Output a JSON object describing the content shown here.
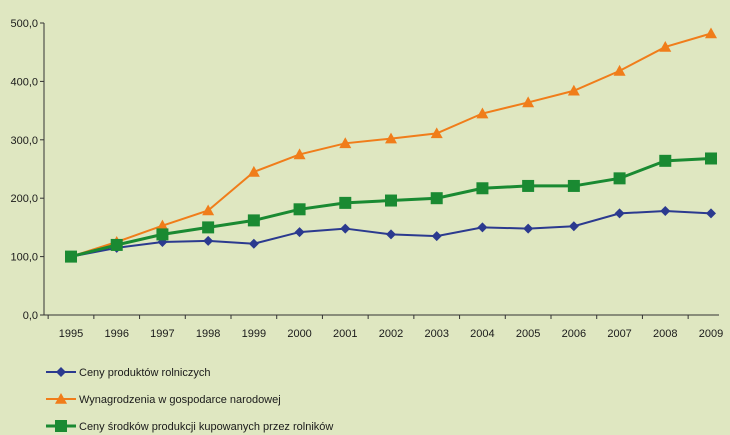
{
  "chart_data": {
    "type": "line",
    "title": "",
    "xlabel": "",
    "ylabel": "",
    "ylim": [
      0,
      500
    ],
    "y_ticks": [
      "0,0",
      "100,0",
      "200,0",
      "300,0",
      "400,0",
      "500,0"
    ],
    "grid": false,
    "legend_placement": "bottom-left",
    "x": [
      "1995",
      "1996",
      "1997",
      "1998",
      "1999",
      "2000",
      "2001",
      "2002",
      "2003",
      "2004",
      "2005",
      "2006",
      "2007",
      "2008",
      "2009"
    ],
    "series": [
      {
        "name": "Ceny produktów rolniczych",
        "color": "#2b3a8f",
        "marker": "diamond",
        "values": [
          100,
          115,
          125,
          127,
          122,
          142,
          148,
          138,
          135,
          150,
          148,
          152,
          174,
          178,
          174
        ]
      },
      {
        "name": "Wynagrodzenia w gospodarce narodowej",
        "color": "#f07d1a",
        "marker": "triangle",
        "values": [
          100,
          125,
          153,
          179,
          245,
          275,
          294,
          302,
          311,
          345,
          364,
          384,
          418,
          459,
          482
        ]
      },
      {
        "name": "Ceny środków produkcji kupowanych przez rolników",
        "color": "#1a8a32",
        "marker": "square",
        "values": [
          100,
          120,
          138,
          150,
          162,
          181,
          192,
          196,
          200,
          217,
          221,
          221,
          234,
          264,
          268
        ]
      }
    ]
  }
}
